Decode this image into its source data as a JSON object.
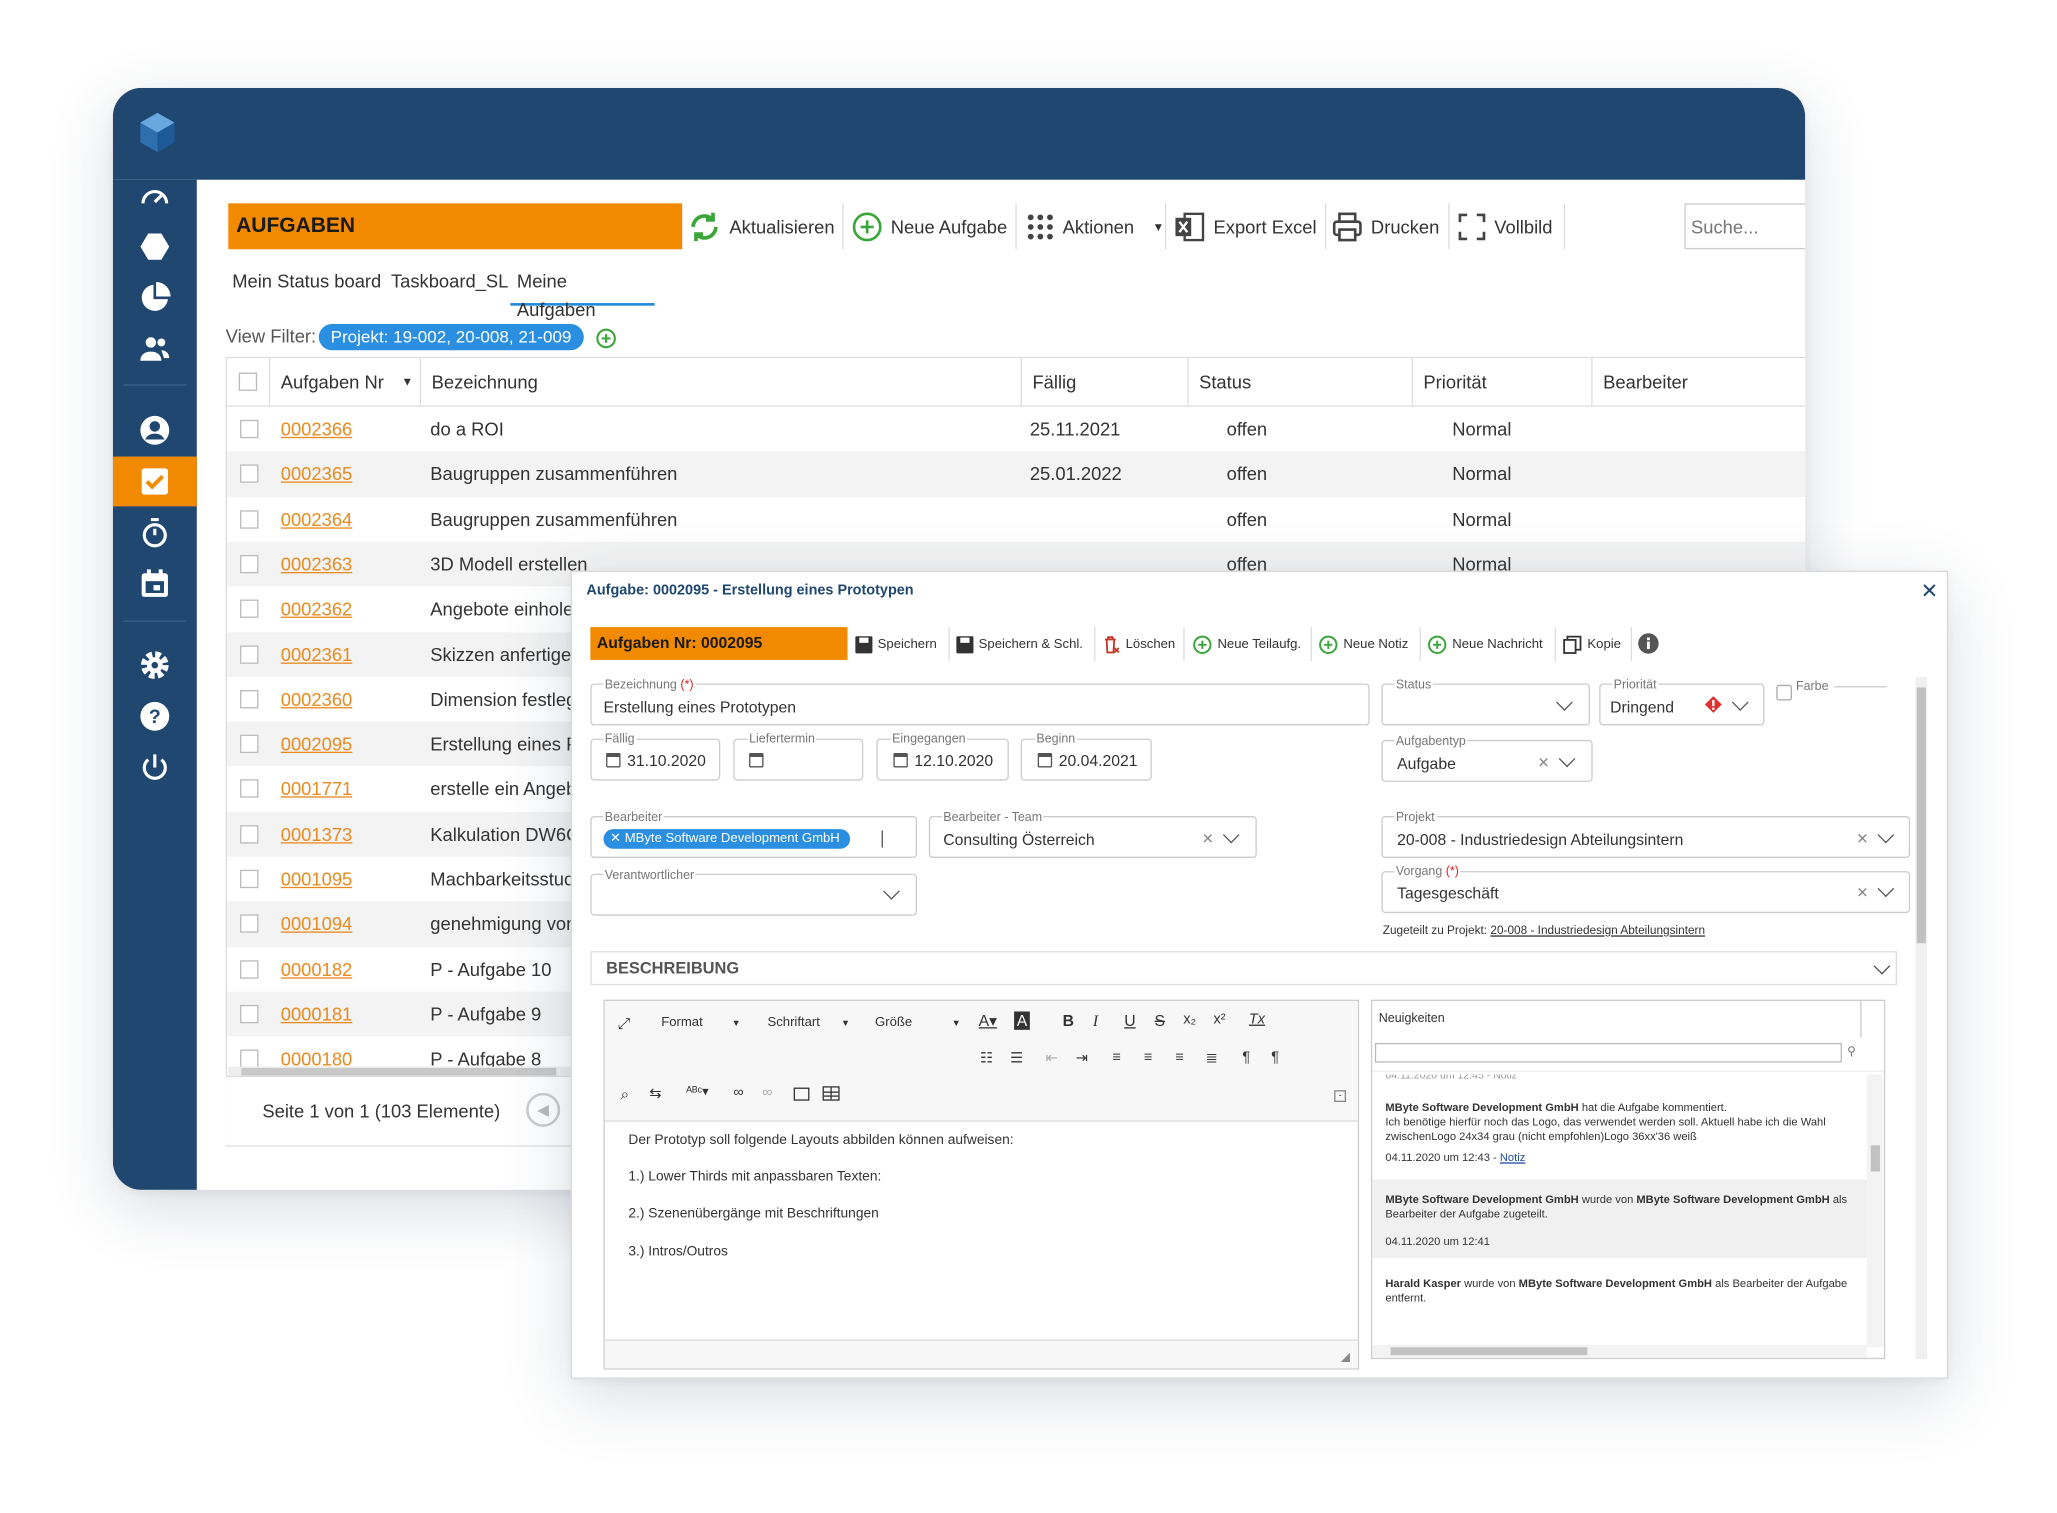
{
  "toolbar": {
    "title": "AUFGABEN",
    "refresh": "Aktualisieren",
    "new_task": "Neue Aufgabe",
    "actions": "Aktionen",
    "export": "Export Excel",
    "print": "Drucken",
    "fullscreen": "Vollbild",
    "search_placeholder": "Suche..."
  },
  "tabs": [
    "Mein Status board",
    "Taskboard_SL",
    "Meine Aufgaben"
  ],
  "filter": {
    "label": "View Filter:",
    "value": "Projekt: 19-002, 20-008, 21-009"
  },
  "grid": {
    "headers": [
      "Aufgaben Nr",
      "Bezeichnung",
      "Fällig",
      "Status",
      "Priorität",
      "Bearbeiter"
    ],
    "rows": [
      {
        "nr": "0002366",
        "bez": "do a ROI",
        "faellig": "25.11.2021",
        "status": "offen",
        "prio": "Normal"
      },
      {
        "nr": "0002365",
        "bez": "Baugruppen zusammenführen",
        "faellig": "25.01.2022",
        "status": "offen",
        "prio": "Normal"
      },
      {
        "nr": "0002364",
        "bez": "Baugruppen zusammenführen",
        "faellig": "",
        "status": "offen",
        "prio": "Normal"
      },
      {
        "nr": "0002363",
        "bez": "3D Modell erstellen",
        "faellig": "",
        "status": "offen",
        "prio": "Normal"
      },
      {
        "nr": "0002362",
        "bez": "Angebote einhole",
        "faellig": "",
        "status": "",
        "prio": ""
      },
      {
        "nr": "0002361",
        "bez": "Skizzen anfertige",
        "faellig": "",
        "status": "",
        "prio": ""
      },
      {
        "nr": "0002360",
        "bez": "Dimension festleg",
        "faellig": "",
        "status": "",
        "prio": ""
      },
      {
        "nr": "0002095",
        "bez": "Erstellung eines F",
        "faellig": "",
        "status": "",
        "prio": ""
      },
      {
        "nr": "0001771",
        "bez": "erstelle ein Angeb",
        "faellig": "",
        "status": "",
        "prio": ""
      },
      {
        "nr": "0001373",
        "bez": "Kalkulation DW6C",
        "faellig": "",
        "status": "",
        "prio": ""
      },
      {
        "nr": "0001095",
        "bez": "Machbarkeitsstuc",
        "faellig": "",
        "status": "",
        "prio": ""
      },
      {
        "nr": "0001094",
        "bez": "genehmigung vor",
        "faellig": "",
        "status": "",
        "prio": ""
      },
      {
        "nr": "0000182",
        "bez": "P - Aufgabe 10",
        "faellig": "",
        "status": "",
        "prio": ""
      },
      {
        "nr": "0000181",
        "bez": "P - Aufgabe 9",
        "faellig": "",
        "status": "",
        "prio": ""
      },
      {
        "nr": "0000180",
        "bez": "P - Aufgabe 8",
        "faellig": "",
        "status": "",
        "prio": ""
      }
    ],
    "pager": "Seite 1 von 1 (103 Elemente)"
  },
  "dialog": {
    "title": "Aufgabe: 0002095 - Erstellung eines Prototypen",
    "nr": "Aufgaben Nr: 0002095",
    "buttons": [
      "Speichern",
      "Speichern & Schl.",
      "Löschen",
      "Neue Teilaufg.",
      "Neue Notiz",
      "Neue Nachricht",
      "Kopie"
    ],
    "bezeichnung_label": "Bezeichnung",
    "required": "(*)",
    "bezeichnung": "Erstellung eines Prototypen",
    "status_label": "Status",
    "prio_label": "Priorität",
    "prio": "Dringend",
    "farbe_label": "Farbe",
    "faellig_label": "Fällig",
    "faellig": "31.10.2020",
    "liefertermin_label": "Liefertermin",
    "eingegangen_label": "Eingegangen",
    "eingegangen": "12.10.2020",
    "beginn_label": "Beginn",
    "beginn": "20.04.2021",
    "aufgabentyp_label": "Aufgabentyp",
    "aufgabentyp": "Aufgabe",
    "bearbeiter_label": "Bearbeiter",
    "bearbeiter": "MByte Software Development GmbH",
    "team_label": "Bearbeiter - Team",
    "team": "Consulting Österreich",
    "projekt_label": "Projekt",
    "projekt": "20-008 - Industriedesign Abteilungsintern",
    "verantwortlicher_label": "Verantwortlicher",
    "vorgang_label": "Vorgang",
    "vorgang": "Tagesgeschäft",
    "zugeteilt_label": "Zugeteilt zu Projekt:",
    "zugeteilt": "20-008 - Industriedesign Abteilungsintern",
    "beschreibung_title": "BESCHREIBUNG",
    "editor_toolbar": {
      "format": "Format",
      "schriftart": "Schriftart",
      "groesse": "Größe"
    },
    "editor_lines": [
      "Der Prototyp soll folgende Layouts abbilden können aufweisen:",
      "1.) Lower Thirds mit anpassbaren Texten:",
      "2.) Szenenübergänge mit Beschriftungen",
      "3.) Intros/Outros"
    ],
    "news": {
      "title": "Neuigkeiten",
      "items": [
        {
          "author": "MByte Software Development GmbH",
          "text": "hat die Aufgabe kommentiert.",
          "body": "Ich benötige hierfür noch das Logo, das verwendet werden soll. Aktuell habe ich die Wahl zwischenLogo 24x34 grau (nicht empfohlen)Logo 36xx'36 weiß",
          "date": "04.11.2020 um 12:43 -",
          "link": "Notiz"
        },
        {
          "author": "MByte Software Development GmbH",
          "text": "wurde von",
          "author2": "MByte Software Development GmbH",
          "text2": "als Bearbeiter der Aufgabe zugeteilt.",
          "date": "04.11.2020 um 12:41"
        },
        {
          "author": "Harald Kasper",
          "text": "wurde von",
          "author2": "MByte Software Development GmbH",
          "text2": "als Bearbeiter der Aufgabe entfernt."
        }
      ]
    }
  }
}
